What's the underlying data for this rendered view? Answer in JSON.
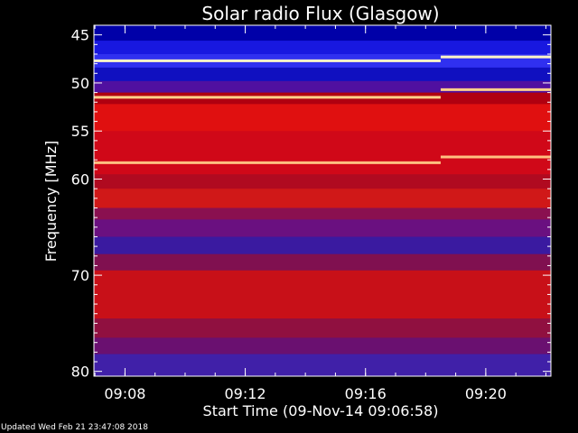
{
  "chart_data": {
    "type": "heatmap",
    "title": "Solar radio Flux (Glasgow)",
    "xlabel": "Start Time (09-Nov-14 09:06:58)",
    "ylabel": "Frequency [MHz]",
    "x_range": [
      "09:06:58",
      "09:22:10"
    ],
    "x_ticks": [
      "09:08",
      "09:12",
      "09:16",
      "09:20"
    ],
    "ylim": [
      44,
      80.5
    ],
    "y_ticks": [
      45,
      50,
      55,
      60,
      70,
      80
    ],
    "y_ticks_minor": [
      46,
      47,
      48,
      49,
      51,
      52,
      53,
      54,
      56,
      57,
      58,
      59,
      61,
      62,
      63,
      64,
      65,
      66,
      67,
      68,
      69,
      71,
      72,
      73,
      74,
      75,
      76,
      77,
      78,
      79
    ],
    "bright_lines": [
      {
        "freq": 47.7,
        "color": "#fff6c8",
        "start": "09:06:58",
        "end": "09:18:30",
        "freq_end": 47.3
      },
      {
        "freq": 51.5,
        "color": "#ffd08a",
        "start": "09:06:58",
        "end": "09:18:30",
        "freq_end": 50.7
      },
      {
        "freq": 58.3,
        "color": "#ffc080",
        "start": "09:06:58",
        "end": "09:18:30",
        "freq_end": 57.7
      }
    ],
    "bands": [
      {
        "from": 44.0,
        "to": 45.6,
        "color": "#0000a8"
      },
      {
        "from": 45.6,
        "to": 47.0,
        "color": "#1818e0"
      },
      {
        "from": 47.0,
        "to": 48.4,
        "color": "#3030f0"
      },
      {
        "from": 48.4,
        "to": 49.8,
        "color": "#1010c0"
      },
      {
        "from": 49.8,
        "to": 51.0,
        "color": "#5010a0"
      },
      {
        "from": 51.0,
        "to": 52.2,
        "color": "#b00010"
      },
      {
        "from": 52.2,
        "to": 55.0,
        "color": "#e01010"
      },
      {
        "from": 55.0,
        "to": 59.5,
        "color": "#d00818"
      },
      {
        "from": 59.5,
        "to": 61.0,
        "color": "#b00a20"
      },
      {
        "from": 61.0,
        "to": 63.0,
        "color": "#d01818"
      },
      {
        "from": 63.0,
        "to": 64.2,
        "color": "#8a1050"
      },
      {
        "from": 64.2,
        "to": 66.0,
        "color": "#6a1080"
      },
      {
        "from": 66.0,
        "to": 67.8,
        "color": "#3a1aa0"
      },
      {
        "from": 67.8,
        "to": 69.5,
        "color": "#801050"
      },
      {
        "from": 69.5,
        "to": 74.5,
        "color": "#c81018"
      },
      {
        "from": 74.5,
        "to": 76.5,
        "color": "#901040"
      },
      {
        "from": 76.5,
        "to": 78.2,
        "color": "#6a1070"
      },
      {
        "from": 78.2,
        "to": 80.5,
        "color": "#4020a8"
      }
    ]
  },
  "footer": {
    "updated": "Updated Wed Feb 21 23:47:08 2018"
  }
}
